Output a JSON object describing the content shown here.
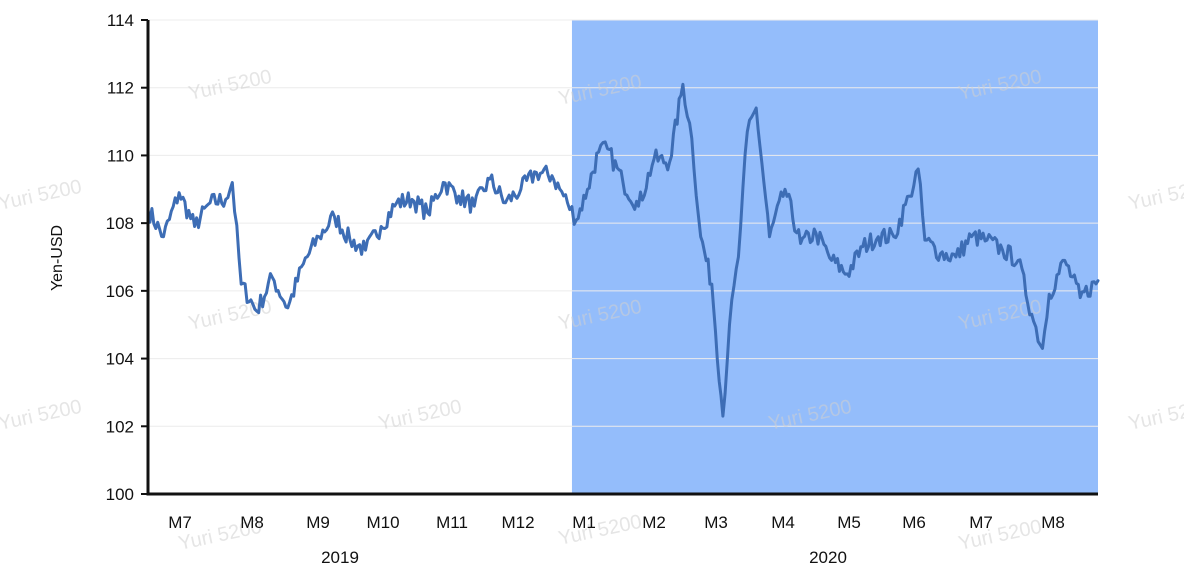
{
  "chart_data": {
    "type": "line",
    "title": "",
    "ylabel": "Yen-USD",
    "xlabel": "",
    "ylim": [
      100,
      114
    ],
    "yticks": [
      100,
      102,
      104,
      106,
      108,
      110,
      112,
      114
    ],
    "grid": true,
    "x_ticks": [
      "M7",
      "M8",
      "M9",
      "M10",
      "M11",
      "M12",
      "M1",
      "M2",
      "M3",
      "M4",
      "M5",
      "M6",
      "M7",
      "M8"
    ],
    "year_labels": [
      "2019",
      "2020"
    ],
    "highlight": {
      "from": "2020-01-01",
      "to": "2020-08-25",
      "color": "#94bdfb"
    },
    "series_color": "#3d6db5",
    "x_start": "2019-06-24",
    "x_end": "2020-08-25",
    "series": [
      {
        "x": [
          "2019-06-24",
          "2019-07-01",
          "2019-07-08",
          "2019-07-15",
          "2019-07-22",
          "2019-07-29",
          "2019-08-01",
          "2019-08-05",
          "2019-08-12",
          "2019-08-19",
          "2019-08-26",
          "2019-09-02",
          "2019-09-09",
          "2019-09-16",
          "2019-09-23",
          "2019-09-30",
          "2019-10-07",
          "2019-10-14",
          "2019-10-21",
          "2019-10-28",
          "2019-11-04",
          "2019-11-11",
          "2019-11-18",
          "2019-11-25",
          "2019-12-02",
          "2019-12-09",
          "2019-12-16",
          "2019-12-23",
          "2019-12-30",
          "2020-01-03",
          "2020-01-08",
          "2020-01-13",
          "2020-01-17",
          "2020-01-24",
          "2020-01-31",
          "2020-02-07",
          "2020-02-14",
          "2020-02-20",
          "2020-02-24",
          "2020-02-28",
          "2020-03-04",
          "2020-03-09",
          "2020-03-12",
          "2020-03-16",
          "2020-03-20",
          "2020-03-24",
          "2020-03-30",
          "2020-04-06",
          "2020-04-13",
          "2020-04-20",
          "2020-04-27",
          "2020-05-04",
          "2020-05-11",
          "2020-05-18",
          "2020-05-25",
          "2020-06-01",
          "2020-06-05",
          "2020-06-08",
          "2020-06-15",
          "2020-06-22",
          "2020-06-29",
          "2020-07-06",
          "2020-07-13",
          "2020-07-20",
          "2020-07-27",
          "2020-07-31",
          "2020-08-03",
          "2020-08-10",
          "2020-08-17",
          "2020-08-25"
        ],
        "values": [
          108.4,
          107.6,
          108.9,
          107.9,
          108.6,
          108.7,
          109.2,
          106.2,
          105.4,
          106.4,
          105.5,
          106.8,
          107.6,
          108.2,
          107.5,
          107.2,
          107.9,
          108.6,
          108.7,
          108.3,
          109.2,
          108.8,
          108.5,
          109.3,
          108.6,
          109.0,
          109.5,
          109.4,
          108.6,
          108.1,
          109.0,
          110.1,
          110.2,
          109.2,
          108.5,
          109.9,
          109.8,
          112.1,
          110.5,
          107.6,
          106.2,
          102.3,
          105.0,
          107.0,
          110.7,
          111.4,
          107.6,
          109.0,
          107.4,
          107.7,
          106.9,
          106.5,
          107.3,
          107.6,
          107.6,
          108.8,
          109.6,
          107.5,
          107.1,
          107.0,
          107.6,
          107.5,
          107.2,
          106.9,
          105.1,
          104.3,
          105.9,
          106.9,
          105.8,
          106.3
        ]
      }
    ]
  },
  "watermark": "Yuri 5200"
}
